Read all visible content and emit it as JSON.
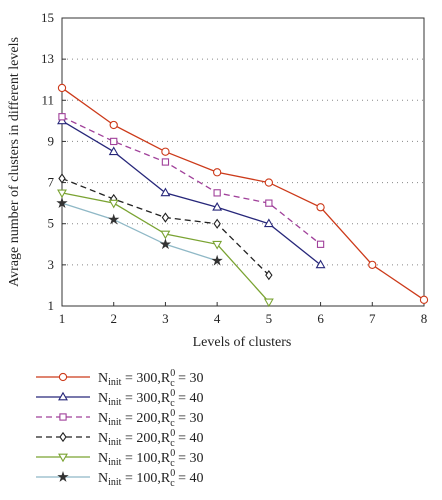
{
  "chart_data": {
    "type": "line",
    "xlabel": "Levels of clusters",
    "ylabel": "Avrage number of clusters in different levels",
    "xlim": [
      1,
      8
    ],
    "ylim": [
      1,
      15
    ],
    "xticks": [
      "1",
      "2",
      "3",
      "4",
      "5",
      "6",
      "7",
      "8"
    ],
    "yticks": [
      "1",
      "3",
      "5",
      "7",
      "9",
      "11",
      "13",
      "15"
    ],
    "grid": "horizontal dotted",
    "legend_position": "bottom",
    "series": [
      {
        "label": {
          "n": "N",
          "nsub": "init",
          "eq1": " = 300,R",
          "rsub": "c",
          "rsup": "0",
          "eq2": " = 30"
        },
        "color": "#cc3a1a",
        "dash": "",
        "marker": "circle",
        "x": [
          1,
          2,
          3,
          4,
          5,
          6,
          7,
          8
        ],
        "values": [
          11.6,
          9.8,
          8.5,
          7.5,
          7.0,
          5.8,
          3.0,
          1.3
        ]
      },
      {
        "label": {
          "n": "N",
          "nsub": "init",
          "eq1": " = 300,R",
          "rsub": "c",
          "rsup": "0",
          "eq2": " = 40"
        },
        "color": "#27277a",
        "dash": "",
        "marker": "triangle-up",
        "x": [
          1,
          2,
          3,
          4,
          5,
          6
        ],
        "values": [
          10.0,
          8.5,
          6.5,
          5.8,
          5.0,
          3.0
        ]
      },
      {
        "label": {
          "n": "N",
          "nsub": "init",
          "eq1": " = 200,R",
          "rsub": "c",
          "rsup": "0",
          "eq2": " = 30"
        },
        "color": "#a0409a",
        "dash": "6,4",
        "marker": "square",
        "x": [
          1,
          2,
          3,
          4,
          5,
          6
        ],
        "values": [
          10.2,
          9.0,
          8.0,
          6.5,
          6.0,
          4.0
        ]
      },
      {
        "label": {
          "n": "N",
          "nsub": "init",
          "eq1": " = 200,R",
          "rsub": "c",
          "rsup": "0",
          "eq2": " = 40"
        },
        "color": "#222222",
        "dash": "6,4",
        "marker": "diamond",
        "x": [
          1,
          2,
          3,
          4,
          5
        ],
        "values": [
          7.2,
          6.2,
          5.3,
          5.0,
          2.5
        ]
      },
      {
        "label": {
          "n": "N",
          "nsub": "init",
          "eq1": " = 100,R",
          "rsub": "c",
          "rsup": "0",
          "eq2": " = 30"
        },
        "color": "#7aa332",
        "dash": "",
        "marker": "triangle-down",
        "x": [
          1,
          2,
          3,
          4,
          5
        ],
        "values": [
          6.5,
          6.0,
          4.5,
          4.0,
          1.2
        ]
      },
      {
        "label": {
          "n": "N",
          "nsub": "init",
          "eq1": " = 100,R",
          "rsub": "c",
          "rsup": "0",
          "eq2": " = 40"
        },
        "color": "#8fb8c6",
        "dash": "",
        "marker": "star",
        "x": [
          1,
          2,
          3,
          4
        ],
        "values": [
          6.0,
          5.2,
          4.0,
          3.2
        ]
      }
    ]
  }
}
